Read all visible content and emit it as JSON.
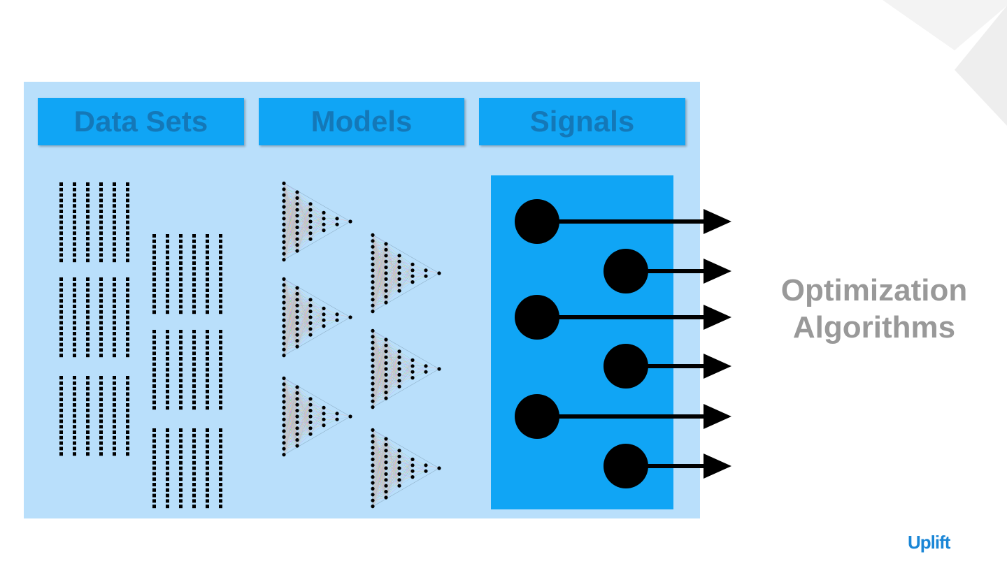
{
  "headers": {
    "datasets": "Data Sets",
    "models": "Models",
    "signals": "Signals"
  },
  "side_label": {
    "line1": "Optimization",
    "line2": "Algorithms"
  },
  "logo": "Uplift",
  "colors": {
    "panel": "#b9dffb",
    "header": "#10a5f5",
    "header_text": "#1478b8",
    "signals_box": "#10a5f5",
    "label": "#999999",
    "logo": "#1a86d6"
  },
  "icons": {
    "dataset": "dot-grid-icon",
    "model": "neural-network-icon",
    "signal": "signal-arrow-icon"
  }
}
